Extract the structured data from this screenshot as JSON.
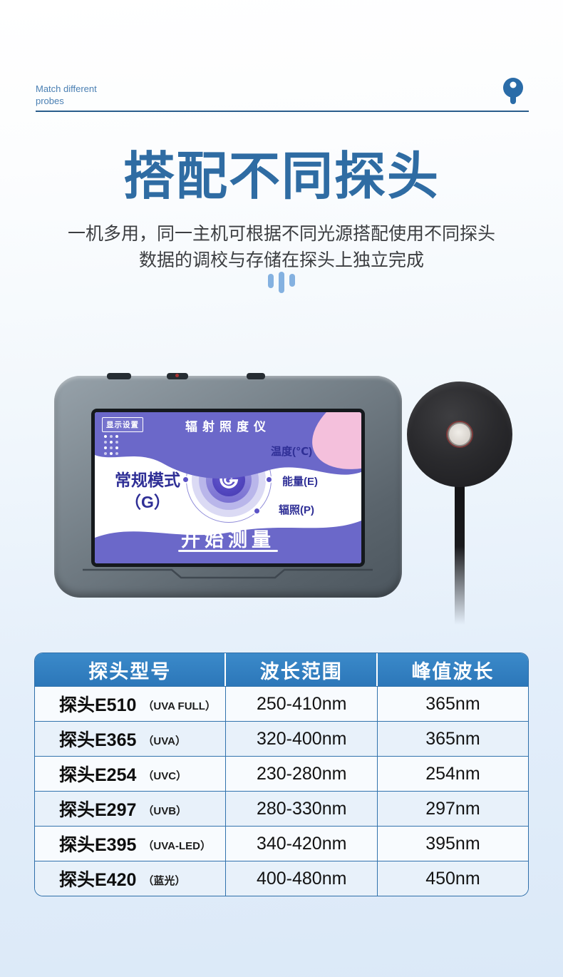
{
  "header": {
    "label_line1": "Match different",
    "label_line2": "probes"
  },
  "hero": {
    "title": "搭配不同探头",
    "desc1": "一机多用，同一主机可根据不同光源搭配使用不同探头",
    "desc2": "数据的调校与存储在探头上独立完成"
  },
  "device": {
    "screen": {
      "settings_badge": "显示设置",
      "title": "辐射照度仪",
      "mode_line1": "常规模式",
      "mode_line2": "（G）",
      "logo_letter": "G",
      "menu_items": [
        "温度(℃)",
        "能量(E)",
        "辐照(P)"
      ],
      "start_label": "开始测量"
    }
  },
  "table": {
    "headers": [
      "探头型号",
      "波长范围",
      "峰值波长"
    ],
    "rows": [
      {
        "model": "探头E510",
        "tag": "（UVA FULL）",
        "range": "250-410nm",
        "peak": "365nm"
      },
      {
        "model": "探头E365",
        "tag": "（UVA）",
        "range": "320-400nm",
        "peak": "365nm"
      },
      {
        "model": "探头E254",
        "tag": "（UVC）",
        "range": "230-280nm",
        "peak": "254nm"
      },
      {
        "model": "探头E297",
        "tag": "（UVB）",
        "range": "280-330nm",
        "peak": "297nm"
      },
      {
        "model": "探头E395",
        "tag": "（UVA-LED）",
        "range": "340-420nm",
        "peak": "395nm"
      },
      {
        "model": "探头E420",
        "tag": "（蓝光）",
        "range": "400-480nm",
        "peak": "450nm"
      }
    ]
  },
  "colors": {
    "title_blue": "#2f6ca3",
    "accent_line_blue": "#2a5d8c",
    "deco_bar_blue": "#84b1e0",
    "table_header_blue": "#2f7fc2",
    "table_border_blue": "#3273ad",
    "screen_purple": "#6b68c9",
    "screen_pink": "#f4c0dc",
    "screen_text_indigo": "#2f2f96",
    "core_purple": "#4c40bb"
  }
}
